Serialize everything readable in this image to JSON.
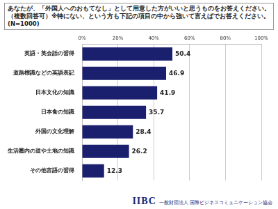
{
  "chart_data": {
    "type": "bar",
    "title": "あなたが、「外国人へのおもてなし」として用意した方がいいと思うものをお答えください。（複数回答可）※特にない、という方も下記の項目の中から強いて言えばでお答えください。(N=1000)",
    "categories": [
      "英語・英会話の習得",
      "道路標識などの英語表記",
      "日本文化の知識",
      "日本食の知識",
      "外国の文化理解",
      "生活圏内の道や土地の知識",
      "その他言語の習得"
    ],
    "values": [
      50.4,
      46.9,
      41.9,
      35.7,
      28.4,
      26.2,
      12.3
    ],
    "color": "#1a1f6e",
    "orientation": "horizontal",
    "xlim": [
      0,
      100
    ],
    "xticks": [
      {
        "value": 0,
        "label": "0%"
      },
      {
        "value": 20,
        "label": "20%"
      },
      {
        "value": 40,
        "label": "40%"
      },
      {
        "value": 60,
        "label": "60%"
      },
      {
        "value": 80,
        "label": "80%"
      },
      {
        "value": 100,
        "label": "100%"
      }
    ],
    "grid": true,
    "data_labels": true,
    "annotations": [
      "IIBC",
      "一般財団法人 国際ビジネスコミュニケーション協会"
    ]
  }
}
